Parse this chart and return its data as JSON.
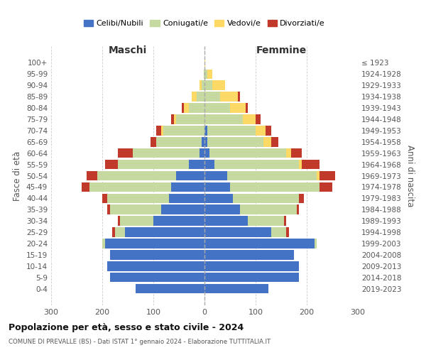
{
  "age_groups": [
    "0-4",
    "5-9",
    "10-14",
    "15-19",
    "20-24",
    "25-29",
    "30-34",
    "35-39",
    "40-44",
    "45-49",
    "50-54",
    "55-59",
    "60-64",
    "65-69",
    "70-74",
    "75-79",
    "80-84",
    "85-89",
    "90-94",
    "95-99",
    "100+"
  ],
  "birth_years": [
    "2019-2023",
    "2014-2018",
    "2009-2013",
    "2004-2008",
    "1999-2003",
    "1994-1998",
    "1989-1993",
    "1984-1988",
    "1979-1983",
    "1974-1978",
    "1969-1973",
    "1964-1968",
    "1959-1963",
    "1954-1958",
    "1949-1953",
    "1944-1948",
    "1939-1943",
    "1934-1938",
    "1929-1933",
    "1924-1928",
    "≤ 1923"
  ],
  "male_celibe": [
    135,
    185,
    190,
    185,
    195,
    155,
    100,
    85,
    70,
    65,
    55,
    30,
    10,
    5,
    0,
    0,
    0,
    0,
    0,
    0,
    0
  ],
  "male_coniugato": [
    0,
    0,
    0,
    0,
    5,
    20,
    65,
    100,
    120,
    160,
    155,
    140,
    130,
    90,
    80,
    55,
    30,
    15,
    5,
    2,
    0
  ],
  "male_vedovo": [
    0,
    0,
    0,
    0,
    0,
    0,
    0,
    0,
    0,
    0,
    0,
    0,
    0,
    0,
    5,
    5,
    10,
    10,
    5,
    0,
    0
  ],
  "male_divorziato": [
    0,
    0,
    0,
    0,
    0,
    5,
    5,
    5,
    10,
    15,
    20,
    25,
    30,
    10,
    10,
    5,
    5,
    0,
    0,
    0,
    0
  ],
  "female_celibe": [
    125,
    185,
    185,
    175,
    215,
    130,
    85,
    70,
    55,
    50,
    45,
    20,
    10,
    5,
    5,
    0,
    0,
    0,
    0,
    0,
    0
  ],
  "female_coniugato": [
    0,
    0,
    0,
    0,
    5,
    30,
    70,
    110,
    130,
    175,
    175,
    165,
    150,
    110,
    95,
    75,
    50,
    30,
    15,
    5,
    0
  ],
  "female_vedovo": [
    0,
    0,
    0,
    0,
    0,
    0,
    0,
    0,
    0,
    0,
    5,
    5,
    10,
    15,
    20,
    25,
    30,
    35,
    25,
    10,
    2
  ],
  "female_divorziato": [
    0,
    0,
    0,
    0,
    0,
    5,
    5,
    5,
    10,
    25,
    30,
    35,
    20,
    15,
    10,
    10,
    5,
    5,
    0,
    0,
    0
  ],
  "colors": {
    "celibe": "#4472c4",
    "coniugato": "#c5d9a0",
    "vedovo": "#ffd966",
    "divorziato": "#c0392b"
  },
  "title": "Popolazione per età, sesso e stato civile - 2024",
  "subtitle": "COMUNE DI PREVALLE (BS) - Dati ISTAT 1° gennaio 2024 - Elaborazione TUTTITALIA.IT",
  "xlabel_left": "Maschi",
  "xlabel_right": "Femmine",
  "ylabel_left": "Fasce di età",
  "ylabel_right": "Anni di nascita",
  "xlim": 300,
  "background_color": "#ffffff",
  "grid_color": "#cccccc",
  "legend_labels": [
    "Celibi/Nubili",
    "Coniugati/e",
    "Vedovi/e",
    "Divorziati/e"
  ]
}
